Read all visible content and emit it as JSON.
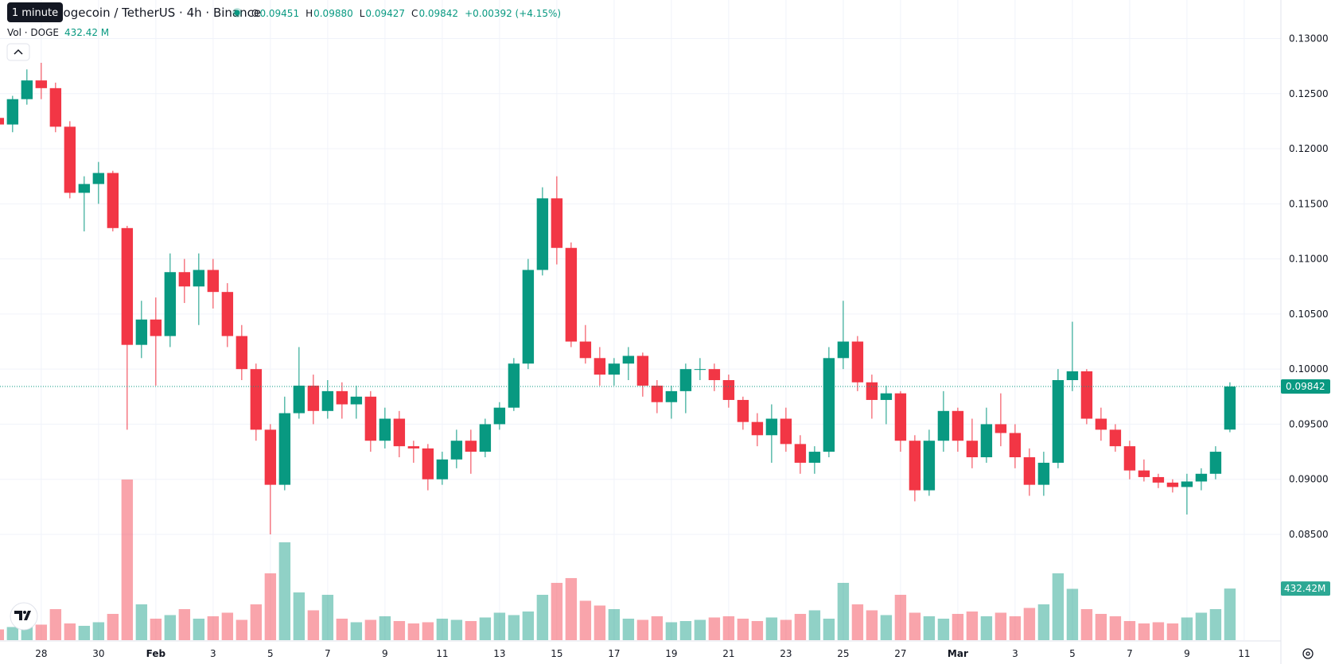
{
  "chart_data": {
    "type": "candlestick",
    "title": "Dogecoin / TetherUS · 4h · Binance",
    "tooltip": "1 minute",
    "legend": [
      {
        "key": "O",
        "text": "0.09451"
      },
      {
        "key": "H",
        "text": "0.09880"
      },
      {
        "key": "L",
        "text": "0.09427"
      },
      {
        "key": "C",
        "text": "0.09842"
      }
    ],
    "change": "+0.00392 (+4.15%)",
    "volume_title": "Vol · DOGE",
    "volume_label": "432.42 M",
    "volume_tag": "432.42M",
    "last_price": 0.09842,
    "up_color": "#089981",
    "down_color": "#f23645",
    "ylim": [
      0.0754,
      0.1335
    ],
    "yticks": [
      {
        "value": 0.085,
        "label": "0.08500"
      },
      {
        "value": 0.09,
        "label": "0.09000"
      },
      {
        "value": 0.095,
        "label": "0.09500"
      },
      {
        "value": 0.1,
        "label": "0.10000"
      },
      {
        "value": 0.105,
        "label": "0.10500"
      },
      {
        "value": 0.11,
        "label": "0.11000"
      },
      {
        "value": 0.115,
        "label": "0.11500"
      },
      {
        "value": 0.12,
        "label": "0.12000"
      },
      {
        "value": 0.125,
        "label": "0.12500"
      },
      {
        "value": 0.13,
        "label": "0.13000"
      }
    ],
    "xlim": [
      26.56,
      71.28
    ],
    "xticks": [
      28,
      30,
      {
        "value": 32,
        "label": "Feb"
      },
      {
        "value": 34,
        "label": "3"
      },
      {
        "value": 36,
        "label": "5"
      },
      {
        "value": 38,
        "label": "7"
      },
      {
        "value": 40,
        "label": "9"
      },
      {
        "value": 42,
        "label": "11"
      },
      {
        "value": 44,
        "label": "13"
      },
      {
        "value": 46,
        "label": "15"
      },
      {
        "value": 48,
        "label": "17"
      },
      {
        "value": 50,
        "label": "19"
      },
      {
        "value": 52,
        "label": "21"
      },
      {
        "value": 54,
        "label": "23"
      },
      {
        "value": 56,
        "label": "25"
      },
      {
        "value": 58,
        "label": "27"
      },
      {
        "value": 60,
        "label": "Mar"
      },
      {
        "value": 62,
        "label": "3"
      },
      {
        "value": 64,
        "label": "5"
      },
      {
        "value": 66,
        "label": "7"
      },
      {
        "value": 68,
        "label": "9"
      },
      {
        "value": 70,
        "label": "11"
      }
    ],
    "grid": true,
    "x": [
      26.5,
      27,
      27.5,
      28,
      28.5,
      29,
      29.5,
      30,
      30.5,
      31,
      31.5,
      32,
      32.5,
      33,
      33.5,
      34,
      34.5,
      35,
      35.5,
      36,
      36.5,
      37,
      37.5,
      38,
      38.5,
      39,
      39.5,
      40,
      40.5,
      41,
      41.5,
      42,
      42.5,
      43,
      43.5,
      44,
      44.5,
      45,
      45.5,
      46,
      46.5,
      47,
      47.5,
      48,
      48.5,
      49,
      49.5,
      50,
      50.5,
      51,
      51.5,
      52,
      52.5,
      53,
      53.5,
      54,
      54.5,
      55,
      55.5,
      56,
      56.5,
      57,
      57.5,
      58,
      58.5,
      59,
      59.5,
      60,
      60.5,
      61,
      61.5,
      62,
      62.5,
      63,
      63.5,
      64,
      64.5,
      65,
      65.5,
      66,
      66.5,
      67,
      67.5,
      68,
      68.5,
      69,
      69.5
    ],
    "candles": [
      [
        0.1228,
        0.1238,
        0.1218,
        0.1222
      ],
      [
        0.1222,
        0.1248,
        0.1215,
        0.1245
      ],
      [
        0.1245,
        0.1272,
        0.124,
        0.1262
      ],
      [
        0.1262,
        0.1278,
        0.1245,
        0.1255
      ],
      [
        0.1255,
        0.126,
        0.1215,
        0.122
      ],
      [
        0.122,
        0.1225,
        0.1155,
        0.116
      ],
      [
        0.116,
        0.1175,
        0.1125,
        0.1168
      ],
      [
        0.1168,
        0.1188,
        0.115,
        0.1178
      ],
      [
        0.1178,
        0.118,
        0.1125,
        0.1128
      ],
      [
        0.1128,
        0.113,
        0.0945,
        0.1022
      ],
      [
        0.1022,
        0.1062,
        0.101,
        0.1045
      ],
      [
        0.1045,
        0.1065,
        0.0985,
        0.103
      ],
      [
        0.103,
        0.1105,
        0.102,
        0.1088
      ],
      [
        0.1088,
        0.11,
        0.106,
        0.1075
      ],
      [
        0.1075,
        0.1105,
        0.104,
        0.109
      ],
      [
        0.109,
        0.11,
        0.1055,
        0.107
      ],
      [
        0.107,
        0.1078,
        0.102,
        0.103
      ],
      [
        0.103,
        0.104,
        0.099,
        0.1
      ],
      [
        0.1,
        0.1005,
        0.0935,
        0.0945
      ],
      [
        0.0945,
        0.095,
        0.085,
        0.0895
      ],
      [
        0.0895,
        0.0975,
        0.089,
        0.096
      ],
      [
        0.096,
        0.102,
        0.0955,
        0.0985
      ],
      [
        0.0985,
        0.0995,
        0.095,
        0.0962
      ],
      [
        0.0962,
        0.099,
        0.0955,
        0.098
      ],
      [
        0.098,
        0.0988,
        0.0955,
        0.0968
      ],
      [
        0.0968,
        0.0985,
        0.0955,
        0.0975
      ],
      [
        0.0975,
        0.098,
        0.0925,
        0.0935
      ],
      [
        0.0935,
        0.0965,
        0.0928,
        0.0955
      ],
      [
        0.0955,
        0.0962,
        0.092,
        0.093
      ],
      [
        0.093,
        0.0935,
        0.0915,
        0.0928
      ],
      [
        0.0928,
        0.0932,
        0.089,
        0.09
      ],
      [
        0.09,
        0.0925,
        0.0895,
        0.0918
      ],
      [
        0.0918,
        0.0945,
        0.091,
        0.0935
      ],
      [
        0.0935,
        0.0945,
        0.0905,
        0.0925
      ],
      [
        0.0925,
        0.0955,
        0.092,
        0.095
      ],
      [
        0.095,
        0.097,
        0.0945,
        0.0965
      ],
      [
        0.0965,
        0.101,
        0.0962,
        0.1005
      ],
      [
        0.1005,
        0.11,
        0.1,
        0.109
      ],
      [
        0.109,
        0.1165,
        0.1085,
        0.1155
      ],
      [
        0.1155,
        0.1175,
        0.1095,
        0.111
      ],
      [
        0.111,
        0.1115,
        0.102,
        0.1025
      ],
      [
        0.1025,
        0.104,
        0.1005,
        0.101
      ],
      [
        0.101,
        0.102,
        0.0985,
        0.0995
      ],
      [
        0.0995,
        0.101,
        0.0985,
        0.1005
      ],
      [
        0.1005,
        0.102,
        0.099,
        0.1012
      ],
      [
        0.1012,
        0.1015,
        0.0975,
        0.0985
      ],
      [
        0.0985,
        0.099,
        0.096,
        0.097
      ],
      [
        0.097,
        0.0985,
        0.0955,
        0.098
      ],
      [
        0.098,
        0.1005,
        0.096,
        0.1
      ],
      [
        0.1,
        0.101,
        0.099,
        0.1
      ],
      [
        0.1,
        0.1005,
        0.098,
        0.099
      ],
      [
        0.099,
        0.0995,
        0.0965,
        0.0972
      ],
      [
        0.0972,
        0.0975,
        0.0945,
        0.0952
      ],
      [
        0.0952,
        0.096,
        0.093,
        0.094
      ],
      [
        0.094,
        0.0968,
        0.0915,
        0.0955
      ],
      [
        0.0955,
        0.0965,
        0.0925,
        0.0932
      ],
      [
        0.0932,
        0.094,
        0.0905,
        0.0915
      ],
      [
        0.0915,
        0.093,
        0.0905,
        0.0925
      ],
      [
        0.0925,
        0.102,
        0.092,
        0.101
      ],
      [
        0.101,
        0.1062,
        0.1,
        0.1025
      ],
      [
        0.1025,
        0.103,
        0.098,
        0.0988
      ],
      [
        0.0988,
        0.0995,
        0.0955,
        0.0972
      ],
      [
        0.0972,
        0.0985,
        0.095,
        0.0978
      ],
      [
        0.0978,
        0.098,
        0.0925,
        0.0935
      ],
      [
        0.0935,
        0.094,
        0.088,
        0.089
      ],
      [
        0.089,
        0.0945,
        0.0885,
        0.0935
      ],
      [
        0.0935,
        0.098,
        0.0925,
        0.0962
      ],
      [
        0.0962,
        0.0965,
        0.0925,
        0.0935
      ],
      [
        0.0935,
        0.0955,
        0.091,
        0.092
      ],
      [
        0.092,
        0.0965,
        0.0915,
        0.095
      ],
      [
        0.095,
        0.0978,
        0.093,
        0.0942
      ],
      [
        0.0942,
        0.095,
        0.091,
        0.092
      ],
      [
        0.092,
        0.0928,
        0.0885,
        0.0895
      ],
      [
        0.0895,
        0.0925,
        0.0885,
        0.0915
      ],
      [
        0.0915,
        0.1,
        0.091,
        0.099
      ],
      [
        0.099,
        0.1043,
        0.098,
        0.0998
      ],
      [
        0.0998,
        0.1,
        0.095,
        0.0955
      ],
      [
        0.0955,
        0.0965,
        0.0935,
        0.0945
      ],
      [
        0.0945,
        0.095,
        0.0925,
        0.093
      ],
      [
        0.093,
        0.0935,
        0.09,
        0.0908
      ],
      [
        0.0908,
        0.0918,
        0.0898,
        0.0902
      ],
      [
        0.0902,
        0.0905,
        0.0892,
        0.0897
      ],
      [
        0.0897,
        0.09,
        0.0888,
        0.0893
      ],
      [
        0.0893,
        0.0905,
        0.0868,
        0.0898
      ],
      [
        0.0898,
        0.091,
        0.089,
        0.0905
      ],
      [
        0.0905,
        0.093,
        0.09,
        0.0925
      ],
      [
        0.09451,
        0.0988,
        0.09427,
        0.09842
      ]
    ],
    "volumes": [
      90,
      110,
      150,
      130,
      260,
      140,
      120,
      150,
      220,
      1346,
      300,
      180,
      210,
      260,
      180,
      200,
      230,
      170,
      300,
      560,
      820,
      400,
      250,
      380,
      180,
      150,
      170,
      200,
      160,
      140,
      150,
      180,
      170,
      160,
      190,
      230,
      210,
      240,
      380,
      480,
      520,
      330,
      290,
      260,
      180,
      170,
      200,
      150,
      160,
      170,
      190,
      200,
      180,
      160,
      190,
      170,
      220,
      250,
      180,
      480,
      300,
      250,
      210,
      380,
      230,
      200,
      180,
      220,
      240,
      200,
      230,
      200,
      270,
      300,
      560,
      430,
      260,
      220,
      200,
      160,
      140,
      150,
      140,
      190,
      230,
      260,
      432.42
    ]
  }
}
